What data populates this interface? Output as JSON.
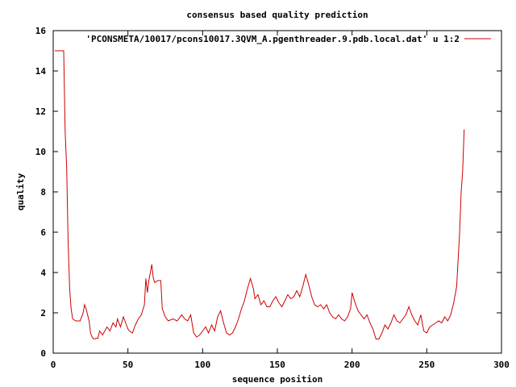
{
  "chart_data": {
    "type": "line",
    "title": "consensus based quality prediction",
    "xlabel": "sequence position",
    "ylabel": "quality",
    "xlim": [
      0,
      300
    ],
    "ylim": [
      0,
      16
    ],
    "xticks": [
      0,
      50,
      100,
      150,
      200,
      250,
      300
    ],
    "yticks": [
      0,
      2,
      4,
      6,
      8,
      10,
      12,
      14,
      16
    ],
    "grid": false,
    "legend_position": "top-right",
    "series": [
      {
        "name": "'PCONSMETA/10017/pcons10017.3QVM_A.pgenthreader.9.pdb.local.dat' u 1:2",
        "color": "#cc0000",
        "points": [
          [
            1,
            15
          ],
          [
            7,
            15
          ],
          [
            8,
            11
          ],
          [
            9,
            9.2
          ],
          [
            10,
            5.5
          ],
          [
            11,
            3.2
          ],
          [
            12,
            2.2
          ],
          [
            13,
            1.7
          ],
          [
            15,
            1.6
          ],
          [
            18,
            1.6
          ],
          [
            20,
            2.0
          ],
          [
            21,
            2.4
          ],
          [
            22,
            2.2
          ],
          [
            24,
            1.6
          ],
          [
            25,
            1.0
          ],
          [
            26,
            0.8
          ],
          [
            27,
            0.7
          ],
          [
            30,
            0.75
          ],
          [
            31,
            1.1
          ],
          [
            33,
            0.9
          ],
          [
            36,
            1.3
          ],
          [
            38,
            1.1
          ],
          [
            40,
            1.5
          ],
          [
            42,
            1.3
          ],
          [
            43,
            1.7
          ],
          [
            45,
            1.3
          ],
          [
            47,
            1.8
          ],
          [
            49,
            1.4
          ],
          [
            50,
            1.2
          ],
          [
            51,
            1.1
          ],
          [
            53,
            1.0
          ],
          [
            55,
            1.4
          ],
          [
            57,
            1.7
          ],
          [
            59,
            1.9
          ],
          [
            61,
            2.4
          ],
          [
            62,
            3.7
          ],
          [
            63,
            3.0
          ],
          [
            64,
            3.6
          ],
          [
            65,
            4.0
          ],
          [
            66,
            4.4
          ],
          [
            67,
            3.7
          ],
          [
            68,
            3.5
          ],
          [
            70,
            3.6
          ],
          [
            72,
            3.6
          ],
          [
            73,
            2.2
          ],
          [
            75,
            1.8
          ],
          [
            77,
            1.6
          ],
          [
            80,
            1.7
          ],
          [
            83,
            1.6
          ],
          [
            86,
            1.9
          ],
          [
            88,
            1.7
          ],
          [
            90,
            1.6
          ],
          [
            92,
            1.9
          ],
          [
            94,
            1.0
          ],
          [
            96,
            0.8
          ],
          [
            98,
            0.9
          ],
          [
            100,
            1.1
          ],
          [
            102,
            1.3
          ],
          [
            104,
            1.0
          ],
          [
            106,
            1.4
          ],
          [
            108,
            1.1
          ],
          [
            110,
            1.8
          ],
          [
            112,
            2.1
          ],
          [
            114,
            1.5
          ],
          [
            116,
            1.0
          ],
          [
            118,
            0.9
          ],
          [
            120,
            1.0
          ],
          [
            122,
            1.3
          ],
          [
            124,
            1.7
          ],
          [
            126,
            2.2
          ],
          [
            128,
            2.6
          ],
          [
            130,
            3.2
          ],
          [
            132,
            3.7
          ],
          [
            134,
            3.2
          ],
          [
            135,
            2.7
          ],
          [
            137,
            2.9
          ],
          [
            139,
            2.4
          ],
          [
            141,
            2.6
          ],
          [
            143,
            2.3
          ],
          [
            145,
            2.3
          ],
          [
            147,
            2.6
          ],
          [
            149,
            2.8
          ],
          [
            151,
            2.5
          ],
          [
            153,
            2.3
          ],
          [
            155,
            2.6
          ],
          [
            157,
            2.9
          ],
          [
            159,
            2.7
          ],
          [
            161,
            2.8
          ],
          [
            163,
            3.1
          ],
          [
            165,
            2.8
          ],
          [
            167,
            3.3
          ],
          [
            169,
            3.9
          ],
          [
            171,
            3.4
          ],
          [
            173,
            2.8
          ],
          [
            175,
            2.4
          ],
          [
            177,
            2.3
          ],
          [
            179,
            2.4
          ],
          [
            181,
            2.2
          ],
          [
            183,
            2.4
          ],
          [
            185,
            2.0
          ],
          [
            187,
            1.8
          ],
          [
            189,
            1.7
          ],
          [
            191,
            1.9
          ],
          [
            193,
            1.7
          ],
          [
            195,
            1.6
          ],
          [
            197,
            1.8
          ],
          [
            199,
            2.2
          ],
          [
            200,
            3.0
          ],
          [
            202,
            2.5
          ],
          [
            204,
            2.1
          ],
          [
            206,
            1.9
          ],
          [
            208,
            1.7
          ],
          [
            210,
            1.9
          ],
          [
            212,
            1.5
          ],
          [
            214,
            1.2
          ],
          [
            216,
            0.7
          ],
          [
            218,
            0.7
          ],
          [
            220,
            1.0
          ],
          [
            222,
            1.4
          ],
          [
            224,
            1.2
          ],
          [
            226,
            1.5
          ],
          [
            228,
            1.9
          ],
          [
            230,
            1.6
          ],
          [
            232,
            1.5
          ],
          [
            234,
            1.7
          ],
          [
            236,
            1.9
          ],
          [
            238,
            2.3
          ],
          [
            240,
            1.9
          ],
          [
            242,
            1.6
          ],
          [
            244,
            1.4
          ],
          [
            246,
            1.9
          ],
          [
            248,
            1.1
          ],
          [
            250,
            1.0
          ],
          [
            252,
            1.3
          ],
          [
            254,
            1.4
          ],
          [
            256,
            1.5
          ],
          [
            258,
            1.6
          ],
          [
            260,
            1.5
          ],
          [
            262,
            1.8
          ],
          [
            264,
            1.6
          ],
          [
            266,
            1.9
          ],
          [
            268,
            2.5
          ],
          [
            270,
            3.3
          ],
          [
            272,
            6.0
          ],
          [
            273,
            8.0
          ],
          [
            274,
            9.0
          ],
          [
            275,
            11.1
          ]
        ]
      }
    ]
  }
}
